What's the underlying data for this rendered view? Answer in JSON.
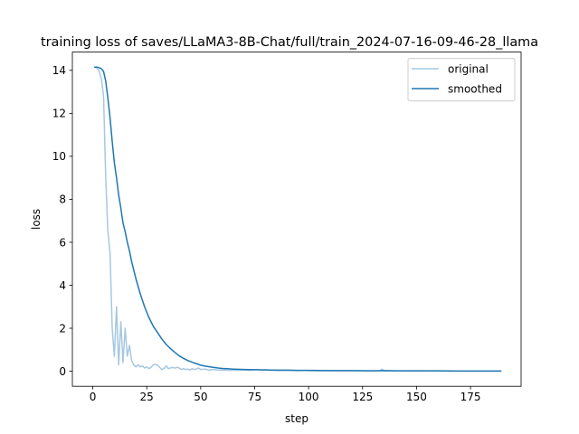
{
  "chart_data": {
    "type": "line",
    "title": "training loss of saves/LLaMA3-8B-Chat/full/train_2024-07-16-09-46-28_llama",
    "xlabel": "step",
    "ylabel": "loss",
    "xlim": [
      -9.45,
      198.45
    ],
    "ylim": [
      -0.7,
      14.85
    ],
    "xticks": [
      0,
      25,
      50,
      75,
      100,
      125,
      150,
      175
    ],
    "yticks": [
      0,
      2,
      4,
      6,
      8,
      10,
      12,
      14
    ],
    "xtick_labels": [
      "0",
      "25",
      "50",
      "75",
      "100",
      "125",
      "150",
      "175"
    ],
    "ytick_labels": [
      "0",
      "2",
      "4",
      "6",
      "8",
      "10",
      "12",
      "14"
    ],
    "grid": false,
    "legend_position": "top-right",
    "series": [
      {
        "name": "original",
        "color": "#a6c8e0",
        "points": [
          [
            1,
            14.15
          ],
          [
            2,
            14.1
          ],
          [
            3,
            13.95
          ],
          [
            4,
            13.6
          ],
          [
            5,
            12.8
          ],
          [
            6,
            9.0
          ],
          [
            7,
            6.5
          ],
          [
            8,
            5.5
          ],
          [
            9,
            2.0
          ],
          [
            10,
            0.7
          ],
          [
            11,
            3.0
          ],
          [
            12,
            0.3
          ],
          [
            13,
            2.3
          ],
          [
            14,
            0.4
          ],
          [
            15,
            2.0
          ],
          [
            16,
            0.7
          ],
          [
            17,
            1.2
          ],
          [
            18,
            0.5
          ],
          [
            19,
            0.3
          ],
          [
            20,
            0.2
          ],
          [
            21,
            0.3
          ],
          [
            22,
            0.2
          ],
          [
            23,
            0.25
          ],
          [
            24,
            0.15
          ],
          [
            25,
            0.2
          ],
          [
            26,
            0.12
          ],
          [
            27,
            0.18
          ],
          [
            28,
            0.3
          ],
          [
            29,
            0.32
          ],
          [
            30,
            0.28
          ],
          [
            31,
            0.18
          ],
          [
            32,
            0.08
          ],
          [
            33,
            0.12
          ],
          [
            34,
            0.25
          ],
          [
            35,
            0.12
          ],
          [
            36,
            0.15
          ],
          [
            37,
            0.18
          ],
          [
            38,
            0.14
          ],
          [
            39,
            0.18
          ],
          [
            40,
            0.15
          ],
          [
            41,
            0.08
          ],
          [
            42,
            0.12
          ],
          [
            43,
            0.08
          ],
          [
            44,
            0.1
          ],
          [
            45,
            0.05
          ],
          [
            46,
            0.12
          ],
          [
            47,
            0.08
          ],
          [
            48,
            0.1
          ],
          [
            49,
            0.15
          ],
          [
            50,
            0.08
          ],
          [
            52,
            0.1
          ],
          [
            54,
            0.05
          ],
          [
            56,
            0.08
          ],
          [
            58,
            0.05
          ],
          [
            60,
            0.06
          ],
          [
            62,
            0.05
          ],
          [
            64,
            0.04
          ],
          [
            66,
            0.06
          ],
          [
            68,
            0.05
          ],
          [
            70,
            0.06
          ],
          [
            72,
            0.04
          ],
          [
            74,
            0.05
          ],
          [
            76,
            0.08
          ],
          [
            78,
            0.05
          ],
          [
            80,
            0.07
          ],
          [
            82,
            0.04
          ],
          [
            84,
            0.05
          ],
          [
            86,
            0.03
          ],
          [
            88,
            0.04
          ],
          [
            90,
            0.03
          ],
          [
            92,
            0.04
          ],
          [
            94,
            0.03
          ],
          [
            96,
            0.03
          ],
          [
            98,
            0.04
          ],
          [
            100,
            0.03
          ],
          [
            105,
            0.02
          ],
          [
            110,
            0.03
          ],
          [
            115,
            0.02
          ],
          [
            120,
            0.02
          ],
          [
            125,
            0.02
          ],
          [
            130,
            0.02
          ],
          [
            133,
            0.02
          ],
          [
            134,
            0.1
          ],
          [
            135,
            0.02
          ],
          [
            140,
            0.02
          ],
          [
            145,
            0.01
          ],
          [
            150,
            0.02
          ],
          [
            155,
            0.01
          ],
          [
            160,
            0.01
          ],
          [
            165,
            0.01
          ],
          [
            170,
            0.01
          ],
          [
            175,
            0.01
          ],
          [
            180,
            0.01
          ],
          [
            185,
            0.01
          ],
          [
            189,
            0.01
          ]
        ]
      },
      {
        "name": "smoothed",
        "color": "#1f77b4",
        "points": [
          [
            1,
            14.15
          ],
          [
            2,
            14.15
          ],
          [
            3,
            14.12
          ],
          [
            4,
            14.08
          ],
          [
            5,
            13.95
          ],
          [
            6,
            13.5
          ],
          [
            7,
            12.7
          ],
          [
            8,
            11.8
          ],
          [
            9,
            10.7
          ],
          [
            10,
            9.7
          ],
          [
            11,
            9.0
          ],
          [
            12,
            8.2
          ],
          [
            13,
            7.6
          ],
          [
            14,
            6.9
          ],
          [
            15,
            6.5
          ],
          [
            16,
            6.0
          ],
          [
            17,
            5.6
          ],
          [
            18,
            5.1
          ],
          [
            19,
            4.7
          ],
          [
            20,
            4.3
          ],
          [
            22,
            3.6
          ],
          [
            24,
            3.0
          ],
          [
            26,
            2.5
          ],
          [
            28,
            2.1
          ],
          [
            30,
            1.8
          ],
          [
            32,
            1.5
          ],
          [
            34,
            1.25
          ],
          [
            36,
            1.05
          ],
          [
            38,
            0.88
          ],
          [
            40,
            0.72
          ],
          [
            42,
            0.6
          ],
          [
            44,
            0.5
          ],
          [
            46,
            0.42
          ],
          [
            48,
            0.35
          ],
          [
            50,
            0.28
          ],
          [
            52,
            0.24
          ],
          [
            55,
            0.19
          ],
          [
            58,
            0.15
          ],
          [
            60,
            0.13
          ],
          [
            65,
            0.1
          ],
          [
            70,
            0.08
          ],
          [
            75,
            0.07
          ],
          [
            80,
            0.06
          ],
          [
            85,
            0.05
          ],
          [
            90,
            0.05
          ],
          [
            95,
            0.04
          ],
          [
            100,
            0.04
          ],
          [
            110,
            0.03
          ],
          [
            120,
            0.03
          ],
          [
            130,
            0.02
          ],
          [
            135,
            0.03
          ],
          [
            140,
            0.02
          ],
          [
            150,
            0.02
          ],
          [
            160,
            0.02
          ],
          [
            170,
            0.01
          ],
          [
            180,
            0.01
          ],
          [
            189,
            0.01
          ]
        ]
      }
    ]
  }
}
